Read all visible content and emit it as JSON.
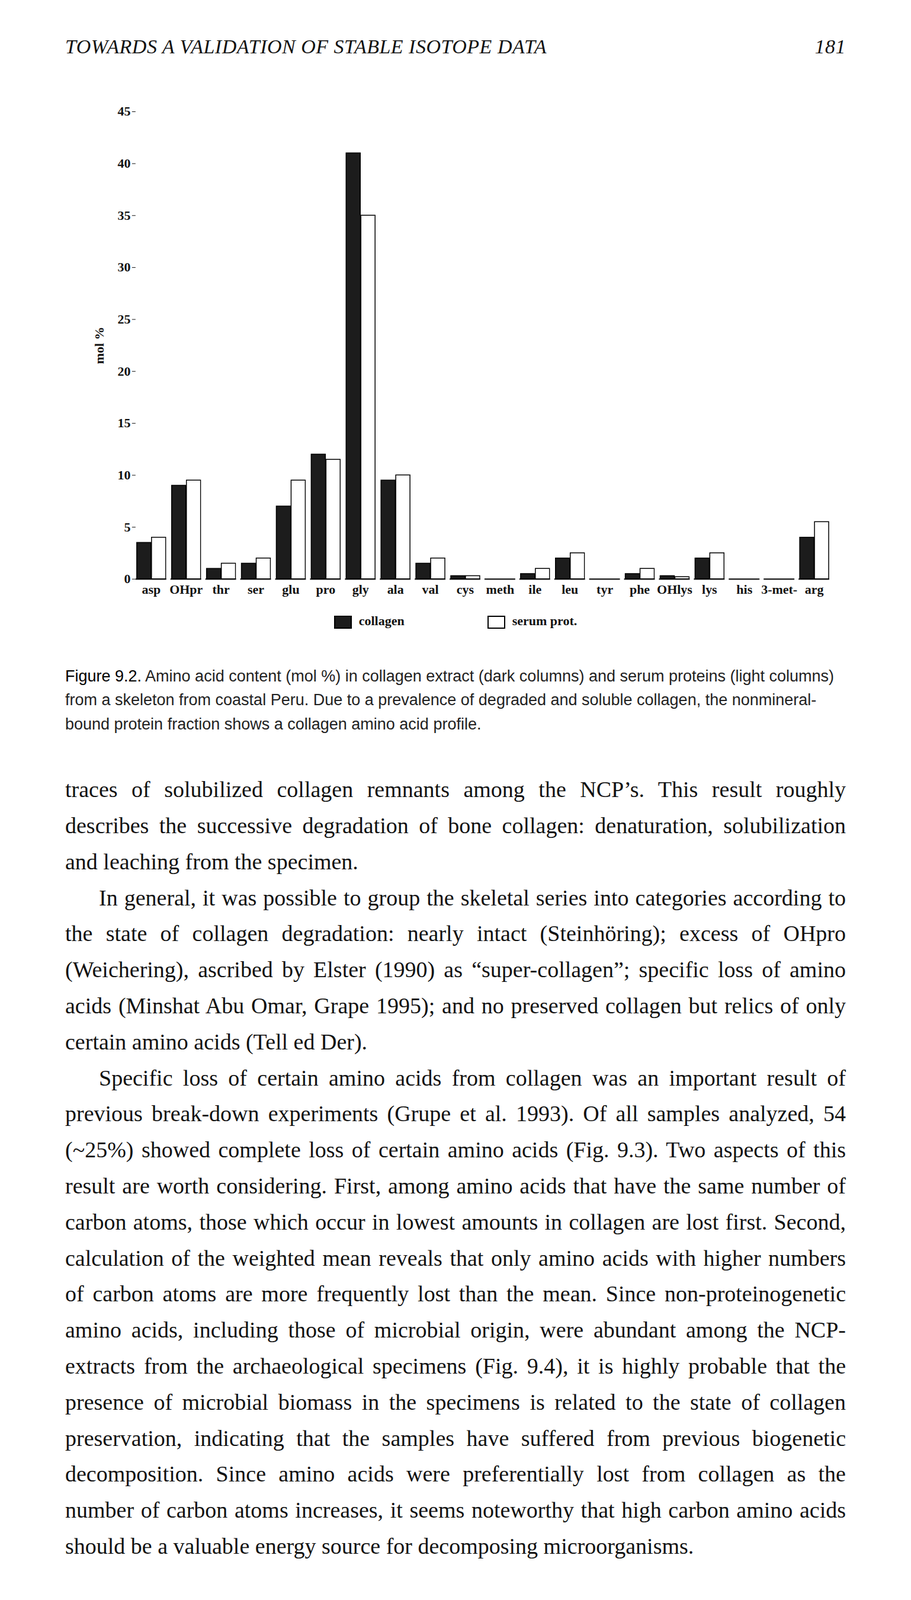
{
  "header": {
    "title": "TOWARDS A VALIDATION OF STABLE ISOTOPE DATA",
    "page": "181"
  },
  "chart_data": {
    "type": "bar",
    "y_label": "mol %",
    "categories": [
      "asp",
      "OHpr",
      "thr",
      "ser",
      "glu",
      "pro",
      "gly",
      "ala",
      "val",
      "cys",
      "meth",
      "ile",
      "leu",
      "tyr",
      "phe",
      "OHlys",
      "lys",
      "his",
      "3-met-",
      "arg"
    ],
    "series": [
      {
        "name": "collagen",
        "color": "#1c1c1c",
        "values": [
          3.5,
          9,
          1,
          1.5,
          7,
          12,
          41,
          9.5,
          1.5,
          0.3,
          0,
          0.5,
          2,
          0,
          0.5,
          0.3,
          2,
          0,
          0,
          4
        ]
      },
      {
        "name": "serum prot.",
        "color": "#ffffff",
        "values": [
          4,
          9.5,
          1.5,
          2,
          9.5,
          11.5,
          35,
          10,
          2,
          0.3,
          0,
          1,
          2.5,
          0,
          1,
          0.2,
          2.5,
          0,
          0,
          5.5
        ]
      }
    ],
    "ylim": [
      0,
      45
    ],
    "yticks": [
      0,
      5,
      10,
      15,
      20,
      25,
      30,
      35,
      40,
      45
    ],
    "legend": "bottom"
  },
  "caption": {
    "label": "Figure 9.2.",
    "text": "Amino acid content (mol %) in collagen extract (dark columns) and serum proteins (light columns) from a skeleton from coastal Peru. Due to a prevalence of degraded and soluble collagen, the nonmineral-bound protein fraction shows a collagen amino acid profile."
  },
  "paragraphs": [
    "traces of solubilized collagen remnants among the NCP’s. This result roughly describes the successive degradation of bone collagen: denaturation, solubilization and leaching from the specimen.",
    "In general, it was possible to group the skeletal series into categories according to the state of collagen degradation: nearly intact (Steinhöring); excess of OHpro (Weichering), ascribed by Elster (1990) as “super-collagen”; specific loss of amino acids (Minshat Abu Omar, Grape 1995); and no preserved collagen but relics of only certain amino acids (Tell ed Der).",
    "Specific loss of certain amino acids from collagen was an important result of previous break-down experiments (Grupe et al. 1993). Of all samples analyzed, 54 (~25%) showed complete loss of certain amino acids (Fig. 9.3). Two aspects of this result are worth considering. First, among amino acids that have the same number of carbon atoms, those which occur in lowest amounts in collagen are lost first. Second, calculation of the weighted mean reveals that only amino acids with higher numbers of carbon atoms are more frequently lost than the mean. Since non-proteinogenetic amino acids, including those of microbial origin, were abundant among the NCP-extracts from the archaeological specimens (Fig. 9.4), it is highly probable that the presence of microbial biomass in the specimens is related to the state of collagen preservation, indicating that the samples have suffered from previous biogenetic decomposition. Since amino acids were preferentially lost from collagen as the number of carbon atoms increases, it seems noteworthy that high carbon amino acids should be a valuable energy source for decomposing microorganisms."
  ]
}
